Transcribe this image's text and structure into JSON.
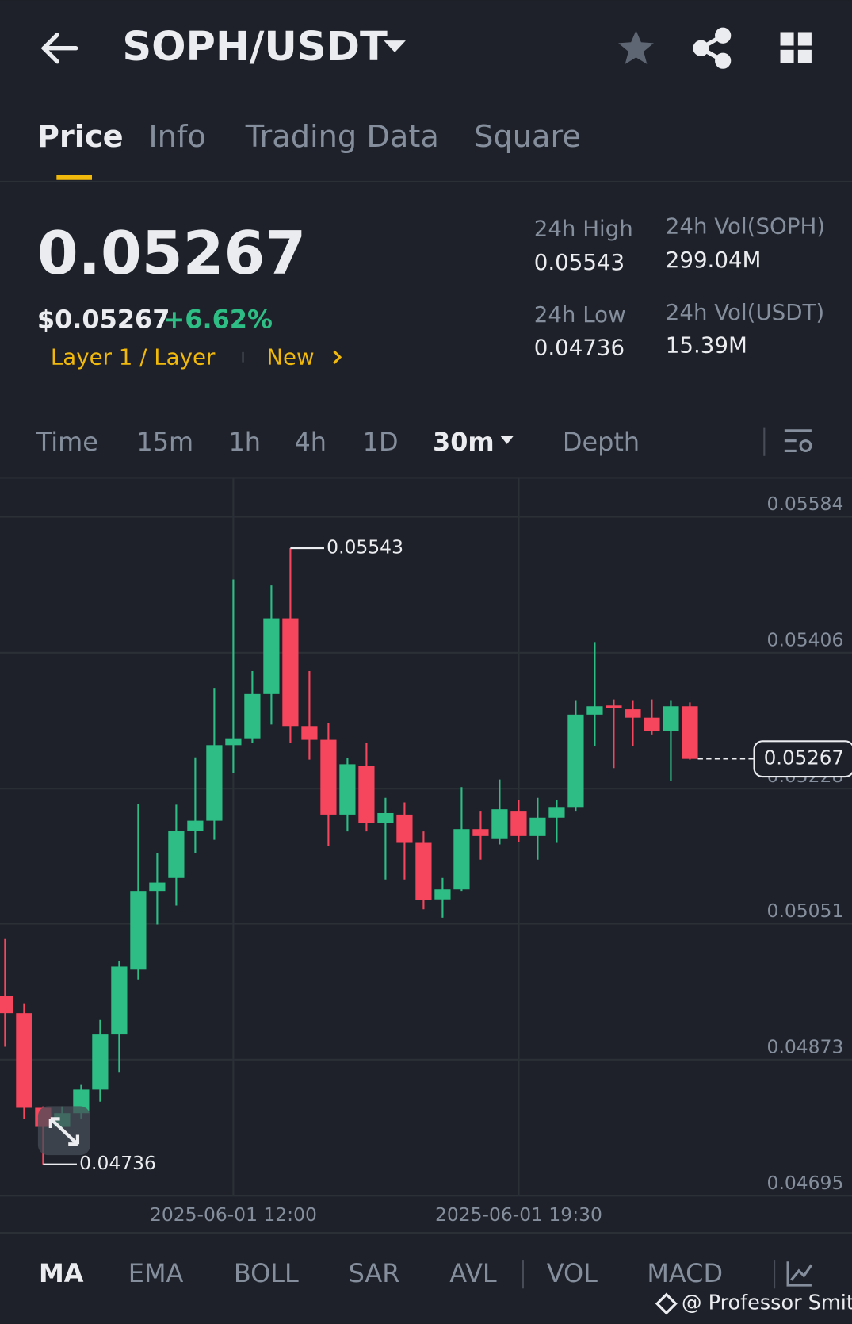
{
  "header": {
    "pair": "SOPH/USDT"
  },
  "tabs": [
    "Price",
    "Info",
    "Trading Data",
    "Square"
  ],
  "ticker": {
    "price": "0.05267",
    "usd_price": "$0.05267",
    "change": "+6.62%",
    "tag": "Layer 1 / Layer",
    "new": "New"
  },
  "stats": [
    {
      "label": "24h High",
      "value": "0.05543"
    },
    {
      "label": "24h Vol(SOPH)",
      "value": "299.04M"
    },
    {
      "label": "24h Low",
      "value": "0.04736"
    },
    {
      "label": "24h Vol(USDT)",
      "value": "15.39M"
    }
  ],
  "intervals": [
    "Time",
    "15m",
    "1h",
    "4h",
    "1D",
    "30m",
    "Depth"
  ],
  "chart_data": {
    "type": "candlestick",
    "x": [
      null,
      null,
      null,
      null,
      null,
      null,
      null,
      null,
      null,
      null,
      null,
      null,
      "2025-06-01 12:00",
      null,
      null,
      null,
      null,
      null,
      null,
      null,
      null,
      null,
      null,
      null,
      null,
      null,
      null,
      "2025-06-01 19:30",
      null,
      null,
      null,
      null,
      null,
      null,
      null,
      null,
      null
    ],
    "open": [
      0.04956,
      0.04934,
      0.0481,
      0.04785,
      0.04803,
      0.04834,
      0.04906,
      0.04991,
      0.05094,
      0.05111,
      0.05173,
      0.05186,
      0.05285,
      0.05294,
      0.05352,
      0.05451,
      0.0531,
      0.05292,
      0.05194,
      0.05258,
      0.05183,
      0.05194,
      0.05157,
      0.05083,
      0.05096,
      0.05175,
      0.05163,
      0.05199,
      0.05166,
      0.0519,
      0.05204,
      0.05325,
      0.05337,
      0.05332,
      0.05321,
      0.05304,
      0.05336
    ],
    "high": [
      0.05031,
      0.04947,
      0.04812,
      0.04812,
      0.0484,
      0.04925,
      0.05002,
      0.05208,
      0.05144,
      0.05207,
      0.05269,
      0.0536,
      0.05502,
      0.05382,
      0.05494,
      0.05543,
      0.05382,
      0.05314,
      0.05268,
      0.05288,
      0.05216,
      0.0521,
      0.05172,
      0.05111,
      0.0523,
      0.05199,
      0.0524,
      0.05213,
      0.05216,
      0.05213,
      0.05343,
      0.0542,
      0.05345,
      0.05343,
      0.05345,
      0.05343,
      0.05341
    ],
    "low": [
      0.0489,
      0.04796,
      0.04736,
      0.04779,
      0.04796,
      0.04818,
      0.04857,
      0.04978,
      0.0505,
      0.05075,
      0.05144,
      0.05161,
      0.05249,
      0.05288,
      0.05312,
      0.05288,
      0.05266,
      0.05153,
      0.05172,
      0.05172,
      0.05109,
      0.05109,
      0.0507,
      0.05059,
      0.05094,
      0.05135,
      0.05155,
      0.05158,
      0.05135,
      0.05157,
      0.05199,
      0.05284,
      0.05255,
      0.05284,
      0.05299,
      0.05238,
      0.05266
    ],
    "close": [
      0.04934,
      0.0481,
      0.04785,
      0.04803,
      0.04834,
      0.04906,
      0.04995,
      0.05094,
      0.05105,
      0.05173,
      0.05186,
      0.05285,
      0.05294,
      0.05352,
      0.05451,
      0.0531,
      0.05292,
      0.05194,
      0.0526,
      0.05183,
      0.05196,
      0.05157,
      0.05082,
      0.05096,
      0.05175,
      0.05166,
      0.05201,
      0.05166,
      0.0519,
      0.05204,
      0.05325,
      0.05336,
      0.05334,
      0.05321,
      0.05304,
      0.05336,
      0.05267
    ],
    "up_color": "#2ebd85",
    "down_color": "#f6465d",
    "ylim": [
      0.04695,
      0.05635
    ],
    "yticks": [
      0.05584,
      0.05406,
      0.05228,
      0.05051,
      0.04873,
      0.04695
    ],
    "grid": true,
    "max_label": 0.05543,
    "min_label": 0.04736,
    "last_price": 0.05267
  },
  "indicators": [
    "MA",
    "EMA",
    "BOLL",
    "SAR",
    "AVL",
    "VOL",
    "MACD"
  ],
  "watermark": "@ Professor Smith"
}
